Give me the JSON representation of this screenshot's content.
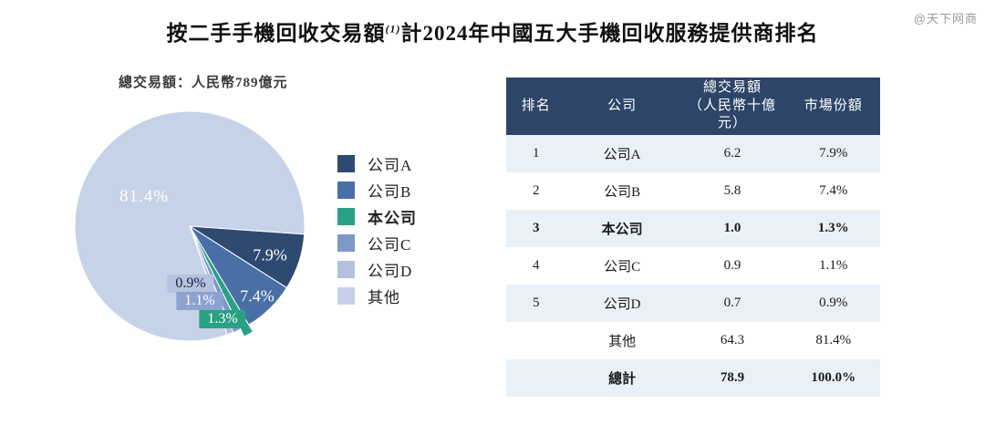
{
  "watermark": "@天下网商",
  "title": {
    "prefix": "按二手手機回收交易額",
    "superscript": "(1)",
    "suffix": "計2024年中國五大手機回收服務提供商排名"
  },
  "subtitle": "總交易額：人民幣789億元",
  "chart_data": {
    "type": "pie",
    "title": "按二手手機回收交易額(1)計2024年中國五大手機回收服務提供商排名",
    "note": "總交易額：人民幣789億元",
    "total_value_rmb_billion": 78.9,
    "start_angle_deg": 4,
    "direction": "clockwise",
    "legend_position": "right",
    "slices": [
      {
        "key": "company-a",
        "label": "公司A",
        "value_pct": 7.9,
        "pct_label": "7.9%",
        "color": "#2e4a70",
        "emphasis": false,
        "exploded": false
      },
      {
        "key": "company-b",
        "label": "公司B",
        "value_pct": 7.4,
        "pct_label": "7.4%",
        "color": "#4a6fa6",
        "emphasis": false,
        "exploded": false
      },
      {
        "key": "our-company",
        "label": "本公司",
        "value_pct": 1.3,
        "pct_label": "1.3%",
        "color": "#28a184",
        "emphasis": true,
        "exploded": true
      },
      {
        "key": "company-c",
        "label": "公司C",
        "value_pct": 1.1,
        "pct_label": "1.1%",
        "color": "#7e97c9",
        "emphasis": false,
        "exploded": false
      },
      {
        "key": "company-d",
        "label": "公司D",
        "value_pct": 0.9,
        "pct_label": "0.9%",
        "color": "#b3c1de",
        "emphasis": false,
        "exploded": false
      },
      {
        "key": "others",
        "label": "其他",
        "value_pct": 81.4,
        "pct_label": "81.4%",
        "color": "#c6d2e7",
        "emphasis": false,
        "exploded": false
      }
    ]
  },
  "table": {
    "headers": [
      {
        "label": "排名"
      },
      {
        "label": "公司"
      },
      {
        "label": "總交易額",
        "sub": "（人民幣十億元）"
      },
      {
        "label": "市場份額"
      }
    ],
    "rows": [
      {
        "rank": "1",
        "company": "公司A",
        "value": "6.2",
        "share": "7.9%",
        "bold": false
      },
      {
        "rank": "2",
        "company": "公司B",
        "value": "5.8",
        "share": "7.4%",
        "bold": false
      },
      {
        "rank": "3",
        "company": "本公司",
        "value": "1.0",
        "share": "1.3%",
        "bold": true
      },
      {
        "rank": "4",
        "company": "公司C",
        "value": "0.9",
        "share": "1.1%",
        "bold": false
      },
      {
        "rank": "5",
        "company": "公司D",
        "value": "0.7",
        "share": "0.9%",
        "bold": false
      },
      {
        "rank": "",
        "company": "其他",
        "value": "64.3",
        "share": "81.4%",
        "bold": false
      },
      {
        "rank": "",
        "company": "總計",
        "value": "78.9",
        "share": "100.0%",
        "bold": true
      }
    ]
  },
  "colors": {
    "table_header_bg": "#2c4568",
    "table_stripe_bg": "#eaf1f6",
    "title_text": "#111111",
    "watermark_text": "#9a9a9a"
  }
}
